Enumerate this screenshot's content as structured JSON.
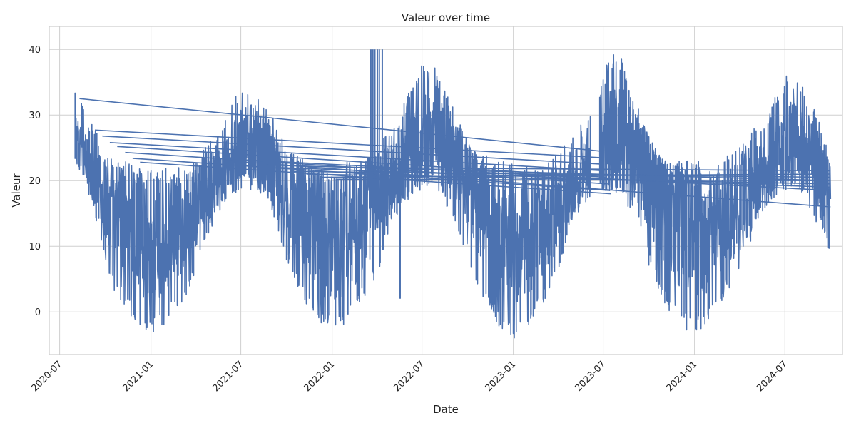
{
  "chart_data": {
    "type": "line",
    "title": "Valeur over time",
    "xlabel": "Date",
    "ylabel": "Valeur",
    "xlim": [
      "2020-06-10",
      "2024-10-25"
    ],
    "ylim": [
      -6.5,
      43.5
    ],
    "x_ticks": [
      "2020-07",
      "2021-01",
      "2021-07",
      "2022-01",
      "2022-07",
      "2023-01",
      "2023-07",
      "2024-01",
      "2024-07"
    ],
    "y_ticks": [
      0,
      10,
      20,
      30,
      40
    ],
    "grid": true,
    "legend": "none",
    "color": "#4c72b0",
    "series": [
      {
        "x": [
          "2020-08-01",
          "2020-08-20",
          "2020-09-10",
          "2020-10-01",
          "2020-10-20",
          "2020-11-10",
          "2020-12-01",
          "2020-12-20",
          "2021-01-10",
          "2021-02-01",
          "2021-02-20",
          "2021-03-10",
          "2021-04-01",
          "2021-04-20",
          "2021-05-10",
          "2021-06-01",
          "2021-06-20",
          "2021-07-10",
          "2021-08-01",
          "2021-08-20",
          "2021-09-10",
          "2021-10-01",
          "2021-10-20",
          "2021-11-10",
          "2021-12-01",
          "2021-12-20",
          "2022-01-10",
          "2022-02-01",
          "2022-02-20",
          "2022-03-10",
          "2022-04-01",
          "2022-04-20",
          "2022-05-10",
          "2022-06-01",
          "2022-06-20",
          "2022-07-10",
          "2022-08-01",
          "2022-08-20",
          "2022-09-10",
          "2022-10-01",
          "2022-10-20",
          "2022-11-10",
          "2022-12-01",
          "2022-12-20",
          "2023-01-10",
          "2023-02-01",
          "2023-02-20",
          "2023-03-10",
          "2023-04-01",
          "2023-04-20",
          "2023-05-10",
          "2023-06-01",
          "2023-06-20",
          "2023-07-10",
          "2023-08-01",
          "2023-08-20",
          "2023-09-10",
          "2023-10-01",
          "2023-10-20",
          "2023-11-10",
          "2023-12-01",
          "2023-12-20",
          "2024-01-10",
          "2024-02-01",
          "2024-02-20",
          "2024-03-10",
          "2024-04-01",
          "2024-04-20",
          "2024-05-10",
          "2024-06-01",
          "2024-06-20",
          "2024-07-10",
          "2024-08-01",
          "2024-08-20",
          "2024-09-10",
          "2024-10-01"
        ],
        "mean": [
          26,
          24,
          21,
          17,
          16,
          14,
          12,
          11,
          11,
          12,
          13,
          14,
          16,
          18,
          20,
          22,
          24,
          26,
          26,
          24,
          21,
          18,
          16,
          14,
          12,
          11,
          11,
          12,
          13,
          15,
          17,
          19,
          21,
          23,
          25,
          27,
          28,
          26,
          23,
          20,
          17,
          15,
          13,
          12,
          11,
          12,
          13,
          14,
          16,
          18,
          20,
          22,
          24,
          26,
          27,
          26,
          23,
          20,
          17,
          15,
          13,
          12,
          11,
          12,
          13,
          14,
          16,
          18,
          20,
          22,
          24,
          26,
          26,
          25,
          22,
          18
        ],
        "high": [
          34,
          31,
          28,
          25,
          24,
          23,
          22,
          22,
          22,
          22,
          22,
          22,
          23,
          25,
          27,
          30,
          33,
          34,
          33,
          31,
          29,
          25,
          24,
          23,
          23,
          22,
          22,
          23,
          23,
          24,
          25,
          27,
          29,
          33,
          36,
          39,
          37,
          34,
          30,
          26,
          24,
          24,
          23,
          23,
          23,
          23,
          23,
          23,
          24,
          26,
          28,
          30,
          33,
          38,
          40,
          36,
          31,
          27,
          24,
          23,
          23,
          23,
          23,
          23,
          23,
          24,
          25,
          27,
          29,
          31,
          34,
          37,
          35,
          33,
          29,
          23
        ],
        "low": [
          23,
          20,
          15,
          8,
          3,
          1,
          -2,
          -3,
          -3,
          -2,
          0,
          2,
          5,
          10,
          14,
          17,
          18,
          19,
          18,
          16,
          13,
          8,
          4,
          1,
          -2,
          -3,
          -3,
          -2,
          0,
          2,
          5,
          10,
          14,
          17,
          18,
          19,
          18,
          16,
          13,
          8,
          4,
          1,
          -2,
          -4,
          -4,
          -2,
          0,
          2,
          6,
          11,
          15,
          17,
          18,
          18,
          18,
          16,
          13,
          7,
          3,
          0,
          -2,
          -3,
          -3,
          -1,
          1,
          3,
          6,
          10,
          14,
          17,
          18,
          19,
          18,
          16,
          12,
          9
        ]
      },
      {
        "x": [
          "2022-03-20",
          "2022-03-20",
          "2022-03-24",
          "2022-03-24",
          "2022-03-28",
          "2022-03-28",
          "2022-04-02",
          "2022-04-02",
          "2022-04-06",
          "2022-04-06",
          "2022-04-12",
          "2022-04-12",
          "2022-05-18",
          "2022-05-18"
        ],
        "y": [
          17,
          40,
          16,
          40,
          15,
          40,
          18,
          40,
          17,
          40,
          18,
          40,
          2,
          22
        ]
      },
      {
        "x": [
          "2020-08-10",
          "2023-06-25",
          "2020-09-10",
          "2023-06-28",
          "2020-09-25",
          "2023-07-01",
          "2020-10-10",
          "2023-07-04",
          "2020-10-25",
          "2023-07-07",
          "2020-11-10",
          "2023-07-10",
          "2020-11-25",
          "2023-07-13",
          "2020-12-10",
          "2023-07-16",
          "2021-06-10",
          "2024-10-01",
          "2021-07-01",
          "2024-10-01",
          "2021-08-10",
          "2024-10-01",
          "2021-09-10",
          "2024-10-01",
          "2021-10-10",
          "2024-10-01",
          "2021-11-10",
          "2024-10-01",
          "2021-12-10",
          "2024-10-01",
          "2022-01-10",
          "2024-10-01",
          "2022-02-10",
          "2024-10-01"
        ],
        "y": [
          32.5,
          24.5,
          27.7,
          23.5,
          26.8,
          22.5,
          25.8,
          21.5,
          25.2,
          20.5,
          24.3,
          19.5,
          23.4,
          18.5,
          22.8,
          18.0,
          23.0,
          16.0,
          23.2,
          18.5,
          22.4,
          20.0,
          22.0,
          19.0,
          21.4,
          20.5,
          21.0,
          19.5,
          20.5,
          21.0,
          20.2,
          20.0,
          22.0,
          21.5
        ]
      }
    ]
  }
}
